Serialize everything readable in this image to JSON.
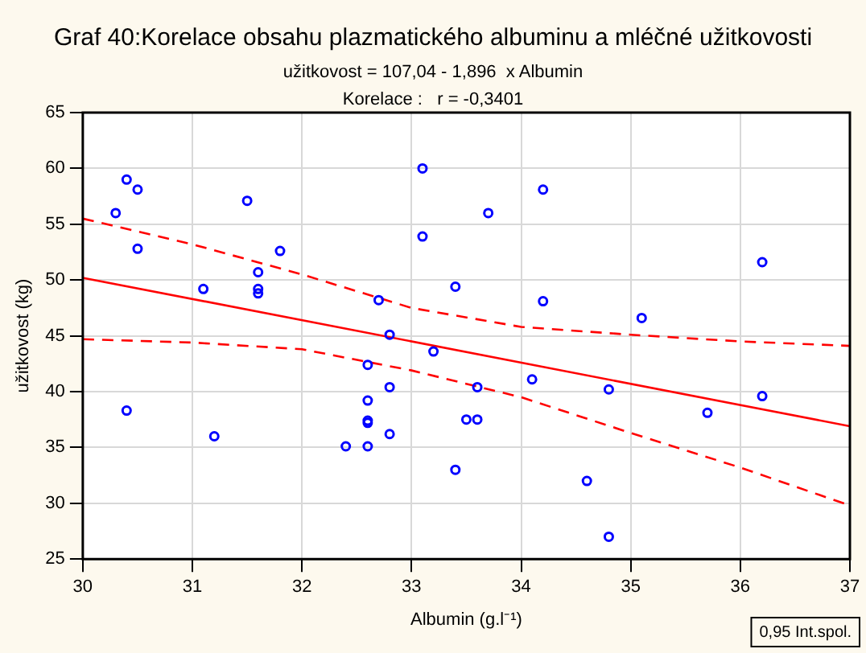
{
  "chart_data": {
    "type": "scatter",
    "title": "Graf 40:Korelace obsahu plazmatického albuminu a mléčné užitkovosti",
    "subtitle": "užitkovost = 107,04 - 1,896  x Albumin",
    "annotations": [
      "Korelace :   r = -0,3401",
      "0,95 Int.spol."
    ],
    "xlabel": "Albumin (g.l⁻¹)",
    "ylabel": "užitkovost (kg)",
    "xlim": [
      30,
      37
    ],
    "xticks": [
      30,
      31,
      32,
      33,
      34,
      35,
      36,
      37
    ],
    "ylim": [
      25,
      65
    ],
    "yticks": [
      25,
      30,
      35,
      40,
      45,
      50,
      55,
      60,
      65
    ],
    "grid": true,
    "legend": false,
    "marker": "circle",
    "series": [
      {
        "type": "scatter",
        "color": "#0000ff",
        "x": [
          30.3,
          30.4,
          30.5,
          30.5,
          30.4,
          31.1,
          31.2,
          31.5,
          31.6,
          31.6,
          31.6,
          31.8,
          32.4,
          32.6,
          32.6,
          32.6,
          32.6,
          32.6,
          32.7,
          32.8,
          32.8,
          32.8,
          33.1,
          33.1,
          33.2,
          33.4,
          33.4,
          33.5,
          33.6,
          33.6,
          33.7,
          34.1,
          34.2,
          34.2,
          34.6,
          34.8,
          34.8,
          35.1,
          35.7,
          36.2,
          36.2
        ],
        "values": [
          56.0,
          59.0,
          58.1,
          52.8,
          38.3,
          49.2,
          36.0,
          57.1,
          50.7,
          49.2,
          48.8,
          52.6,
          35.1,
          42.4,
          39.2,
          37.4,
          37.2,
          35.1,
          48.2,
          45.1,
          40.4,
          36.2,
          60.0,
          53.9,
          43.6,
          49.4,
          33.0,
          37.5,
          37.5,
          40.4,
          56.0,
          41.1,
          58.1,
          48.1,
          32.0,
          40.2,
          27.0,
          46.6,
          38.1,
          51.6,
          39.6
        ]
      },
      {
        "type": "line",
        "color": "#ff0000",
        "line_style": "solid",
        "marker": "none",
        "x": [
          30,
          37
        ],
        "values": [
          50.2,
          36.9
        ]
      },
      {
        "type": "line",
        "color": "#ff0000",
        "line_style": "dashed",
        "marker": "none",
        "x": [
          30,
          31,
          32,
          33,
          34,
          35,
          36,
          37
        ],
        "values": [
          55.5,
          53.2,
          50.5,
          47.5,
          45.8,
          45.1,
          44.5,
          44.1
        ]
      },
      {
        "type": "line",
        "color": "#ff0000",
        "line_style": "dashed",
        "marker": "none",
        "x": [
          30,
          31,
          32,
          33,
          34,
          35,
          36,
          37
        ],
        "values": [
          44.7,
          44.4,
          43.8,
          41.9,
          39.5,
          36.3,
          33.2,
          29.8
        ]
      }
    ]
  }
}
